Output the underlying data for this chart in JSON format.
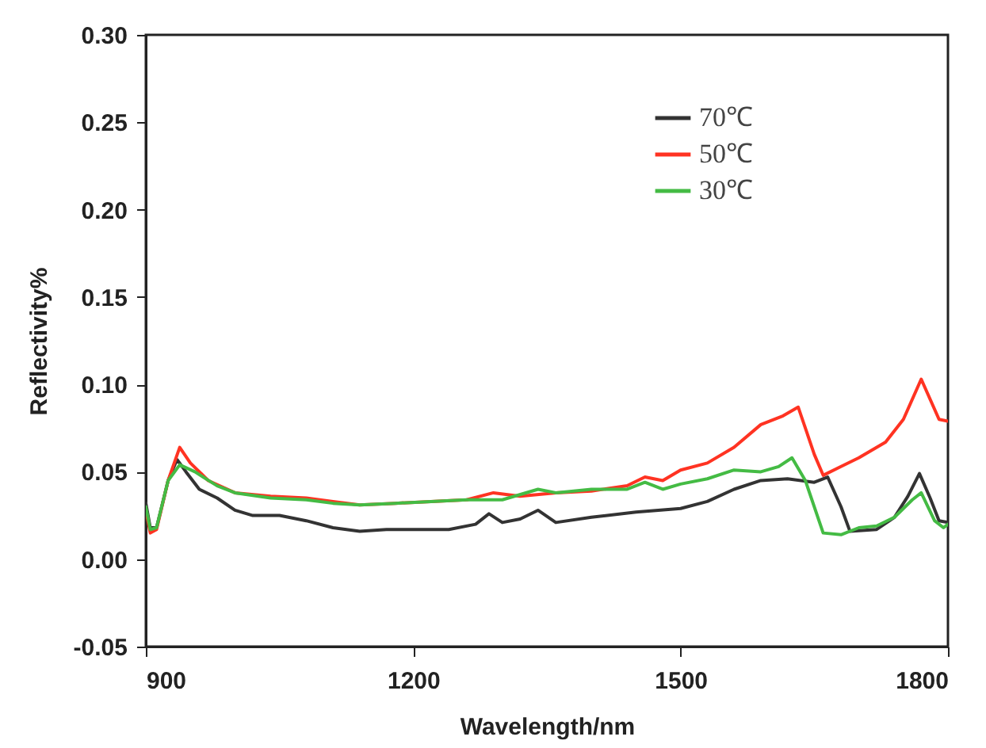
{
  "chart_data": {
    "type": "line",
    "xlabel": "Wavelength/nm",
    "ylabel": "Reflectivity%",
    "xlim": [
      900,
      1800
    ],
    "xticks": [
      900,
      1200,
      1500,
      1800
    ],
    "ylim": [
      -0.05,
      0.3
    ],
    "yticks": [
      {
        "value": -0.05,
        "label": "-0.05"
      },
      {
        "value": 0,
        "label": "0.00"
      },
      {
        "value": 0.05,
        "label": "0.05"
      },
      {
        "value": 0.1,
        "label": "0.10"
      },
      {
        "value": 0.15,
        "label": "0.15"
      },
      {
        "value": 0.2,
        "label": "0.20"
      },
      {
        "value": 0.25,
        "label": "0.25"
      },
      {
        "value": 0.3,
        "label": "0.30"
      }
    ],
    "grid": false,
    "legend": "top right",
    "line_style": "solid",
    "series": [
      {
        "name": "70℃",
        "color": "#333333",
        "x": [
          900,
          905,
          912,
          925,
          935,
          945,
          960,
          980,
          1000,
          1020,
          1050,
          1080,
          1110,
          1140,
          1170,
          1200,
          1240,
          1270,
          1285,
          1300,
          1320,
          1340,
          1360,
          1400,
          1450,
          1500,
          1530,
          1560,
          1590,
          1620,
          1650,
          1665,
          1680,
          1690,
          1720,
          1740,
          1755,
          1768,
          1780,
          1790,
          1800
        ],
        "values": [
          0.032,
          0.018,
          0.018,
          0.045,
          0.057,
          0.05,
          0.04,
          0.035,
          0.028,
          0.025,
          0.025,
          0.022,
          0.018,
          0.016,
          0.017,
          0.017,
          0.017,
          0.02,
          0.026,
          0.021,
          0.023,
          0.028,
          0.021,
          0.024,
          0.027,
          0.029,
          0.033,
          0.04,
          0.045,
          0.046,
          0.044,
          0.047,
          0.03,
          0.016,
          0.017,
          0.024,
          0.036,
          0.049,
          0.035,
          0.022,
          0.021
        ]
      },
      {
        "name": "50℃",
        "color": "#ff3322",
        "x": [
          900,
          905,
          912,
          925,
          938,
          950,
          970,
          1000,
          1040,
          1080,
          1110,
          1140,
          1180,
          1220,
          1260,
          1290,
          1320,
          1360,
          1400,
          1440,
          1460,
          1480,
          1500,
          1530,
          1560,
          1590,
          1615,
          1632,
          1650,
          1660,
          1680,
          1700,
          1730,
          1750,
          1770,
          1790,
          1800
        ],
        "values": [
          0.028,
          0.015,
          0.017,
          0.045,
          0.064,
          0.055,
          0.045,
          0.038,
          0.036,
          0.035,
          0.033,
          0.031,
          0.032,
          0.033,
          0.034,
          0.038,
          0.036,
          0.038,
          0.039,
          0.042,
          0.047,
          0.045,
          0.051,
          0.055,
          0.064,
          0.077,
          0.082,
          0.087,
          0.06,
          0.048,
          0.053,
          0.058,
          0.067,
          0.08,
          0.103,
          0.08,
          0.079
        ]
      },
      {
        "name": "30℃",
        "color": "#44bb44",
        "x": [
          900,
          905,
          912,
          925,
          938,
          955,
          980,
          1000,
          1040,
          1080,
          1110,
          1140,
          1180,
          1220,
          1260,
          1300,
          1340,
          1360,
          1400,
          1440,
          1460,
          1480,
          1500,
          1530,
          1560,
          1590,
          1610,
          1625,
          1640,
          1660,
          1680,
          1700,
          1720,
          1740,
          1760,
          1770,
          1785,
          1795,
          1800
        ],
        "values": [
          0.03,
          0.017,
          0.018,
          0.045,
          0.054,
          0.05,
          0.042,
          0.038,
          0.035,
          0.034,
          0.032,
          0.031,
          0.032,
          0.033,
          0.034,
          0.034,
          0.04,
          0.038,
          0.04,
          0.04,
          0.044,
          0.04,
          0.043,
          0.046,
          0.051,
          0.05,
          0.053,
          0.058,
          0.045,
          0.015,
          0.014,
          0.018,
          0.019,
          0.024,
          0.034,
          0.038,
          0.022,
          0.018,
          0.02
        ]
      }
    ]
  }
}
